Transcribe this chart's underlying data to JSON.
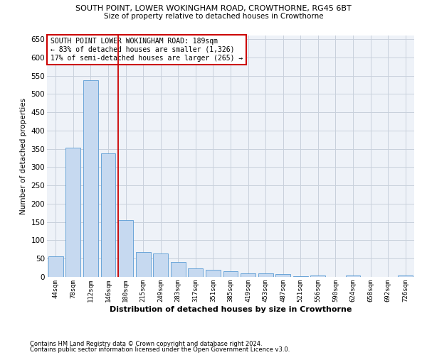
{
  "title": "SOUTH POINT, LOWER WOKINGHAM ROAD, CROWTHORNE, RG45 6BT",
  "subtitle": "Size of property relative to detached houses in Crowthorne",
  "xlabel": "Distribution of detached houses by size in Crowthorne",
  "ylabel": "Number of detached properties",
  "bar_labels": [
    "44sqm",
    "78sqm",
    "112sqm",
    "146sqm",
    "180sqm",
    "215sqm",
    "249sqm",
    "283sqm",
    "317sqm",
    "351sqm",
    "385sqm",
    "419sqm",
    "453sqm",
    "487sqm",
    "521sqm",
    "556sqm",
    "590sqm",
    "624sqm",
    "658sqm",
    "692sqm",
    "726sqm"
  ],
  "bar_values": [
    57,
    353,
    538,
    337,
    155,
    68,
    65,
    40,
    23,
    20,
    15,
    10,
    9,
    8,
    2,
    3,
    0,
    3,
    0,
    0,
    3
  ],
  "bar_color": "#c6d9f0",
  "bar_edge_color": "#5a9bd5",
  "grid_color": "#c8d0dc",
  "background_color": "#eef2f8",
  "vline_color": "#cc0000",
  "annotation_text": "SOUTH POINT LOWER WOKINGHAM ROAD: 189sqm\n← 83% of detached houses are smaller (1,326)\n17% of semi-detached houses are larger (265) →",
  "annotation_box_color": "#ffffff",
  "annotation_border_color": "#cc0000",
  "footnote1": "Contains HM Land Registry data © Crown copyright and database right 2024.",
  "footnote2": "Contains public sector information licensed under the Open Government Licence v3.0.",
  "ylim": [
    0,
    660
  ],
  "yticks": [
    0,
    50,
    100,
    150,
    200,
    250,
    300,
    350,
    400,
    450,
    500,
    550,
    600,
    650
  ]
}
